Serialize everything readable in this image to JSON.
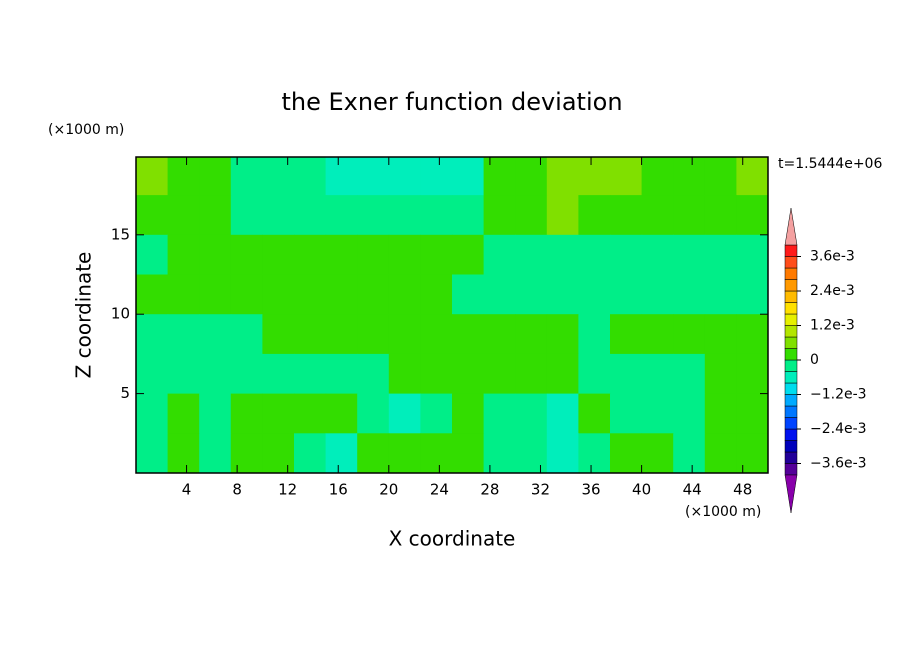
{
  "chart_data": {
    "type": "contour",
    "title": "the Exner function deviation",
    "x_label": "X coordinate",
    "y_label": "Z coordinate",
    "x_unit": "(×1000 m)",
    "y_unit": "(×1000 m)",
    "time_label": "t=1.5444e+06",
    "xlim": [
      0,
      50
    ],
    "ylim": [
      0,
      19.9
    ],
    "xticks": [
      4,
      8,
      12,
      16,
      20,
      24,
      28,
      32,
      36,
      40,
      44,
      48
    ],
    "yticks": [
      5,
      10,
      15
    ],
    "x": [
      1.25,
      3.75,
      6.25,
      8.75,
      11.25,
      13.75,
      16.25,
      18.75,
      21.25,
      23.75,
      26.25,
      28.75,
      31.25,
      33.75,
      36.25,
      38.75,
      41.25,
      43.75,
      46.25,
      48.75
    ],
    "y": [
      18.75,
      16.25,
      13.75,
      11.25,
      8.75,
      6.25,
      3.75,
      1.25
    ],
    "z": [
      [
        0.0006,
        0.0002,
        0.0002,
        -0.0002,
        -0.0002,
        -0.0002,
        -0.0006,
        -0.0006,
        -0.0006,
        -0.0006,
        -0.0006,
        0.0002,
        0.0002,
        0.0006,
        0.0006,
        0.0006,
        0.0002,
        0.0002,
        0.0002,
        0.0006
      ],
      [
        0.0002,
        0.0002,
        0.0002,
        -0.0002,
        -0.0002,
        -0.0002,
        -0.0002,
        -0.0002,
        -0.0002,
        -0.0002,
        -0.0002,
        0.0002,
        0.0002,
        0.0006,
        0.0002,
        0.0002,
        0.0002,
        0.0002,
        0.0002,
        0.0002
      ],
      [
        -0.0002,
        0.0002,
        0.0002,
        0.0002,
        0.0002,
        0.0002,
        0.0002,
        0.0002,
        0.0002,
        0.0002,
        0.0002,
        -0.0002,
        -0.0002,
        -0.0002,
        -0.0002,
        -0.0002,
        -0.0002,
        -0.0002,
        -0.0002,
        -0.0002
      ],
      [
        0.0002,
        0.0002,
        0.0002,
        0.0002,
        0.0002,
        0.0002,
        0.0002,
        0.0002,
        0.0002,
        0.0002,
        -0.0002,
        -0.0002,
        -0.0002,
        -0.0002,
        -0.0002,
        -0.0002,
        -0.0002,
        -0.0002,
        -0.0002,
        -0.0002
      ],
      [
        -0.0002,
        -0.0002,
        -0.0002,
        -0.0002,
        0.0002,
        0.0002,
        0.0002,
        0.0002,
        0.0002,
        0.0002,
        0.0002,
        0.0002,
        0.0002,
        0.0002,
        -0.0002,
        0.0002,
        0.0002,
        0.0002,
        0.0002,
        0.0002
      ],
      [
        -0.0002,
        -0.0002,
        -0.0002,
        -0.0002,
        -0.0002,
        -0.0002,
        -0.0002,
        -0.0002,
        0.0002,
        0.0002,
        0.0002,
        0.0002,
        0.0002,
        0.0002,
        -0.0002,
        -0.0002,
        -0.0002,
        -0.0002,
        0.0002,
        0.0002
      ],
      [
        -0.0002,
        0.0002,
        -0.0002,
        0.0002,
        0.0002,
        0.0002,
        0.0002,
        -0.0002,
        -0.0006,
        -0.0002,
        0.0002,
        -0.0002,
        -0.0002,
        -0.0006,
        0.0002,
        -0.0002,
        -0.0002,
        -0.0002,
        0.0002,
        0.0002
      ],
      [
        -0.0002,
        0.0002,
        -0.0002,
        0.0002,
        0.0002,
        -0.0002,
        -0.0006,
        0.0002,
        0.0002,
        0.0002,
        0.0002,
        -0.0002,
        -0.0002,
        -0.0006,
        -0.0002,
        0.0002,
        0.0002,
        -0.0002,
        0.0002,
        0.0002
      ]
    ],
    "colorbar": {
      "levels": [
        -0.004,
        -0.0036,
        -0.0032,
        -0.0028,
        -0.0024,
        -0.002,
        -0.0016,
        -0.0012,
        -0.0008,
        -0.0004,
        0,
        0.0004,
        0.0008,
        0.0012,
        0.0016,
        0.002,
        0.0024,
        0.0028,
        0.0032,
        0.0036,
        0.004
      ],
      "colors": [
        "#550099",
        "#220099",
        "#0000bb",
        "#0011ee",
        "#0044ff",
        "#0077ff",
        "#00aaff",
        "#00ddee",
        "#00eebb",
        "#00ee88",
        "#33dd00",
        "#80e000",
        "#b3e600",
        "#e6f000",
        "#ffe000",
        "#ffbb00",
        "#ff9900",
        "#ff7a00",
        "#ff4d1a",
        "#ff1a1a"
      ],
      "extend_min_color": "#8800aa",
      "extend_max_color": "#f4a0a0",
      "ticks": [
        {
          "value": 0.0036,
          "label": "3.6e-3"
        },
        {
          "value": 0.0024,
          "label": "2.4e-3"
        },
        {
          "value": 0.0012,
          "label": "1.2e-3"
        },
        0,
        {
          "value": -0.0012,
          "label": "−1.2e-3"
        },
        {
          "value": -0.0024,
          "label": "−2.4e-3"
        },
        {
          "value": -0.0036,
          "label": "−3.6e-3"
        }
      ]
    }
  }
}
